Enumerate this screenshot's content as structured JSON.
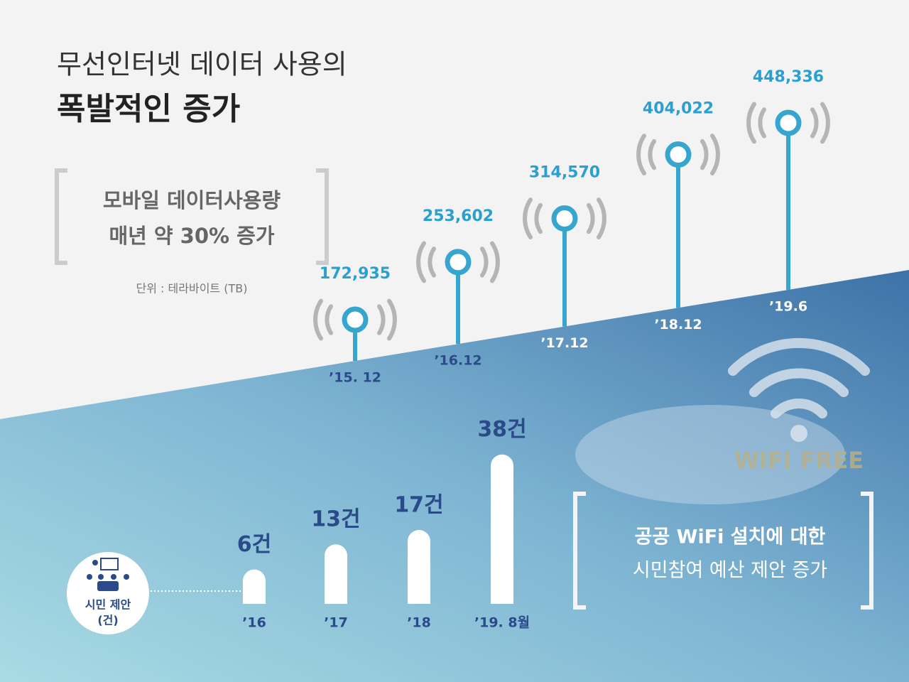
{
  "header": {
    "title_line1": "무선인터넷 데이터 사용의",
    "title_line2": "폭발적인 증가"
  },
  "callout": {
    "lines": [
      "모바일 데이터사용량",
      "매년 약 30% 증가"
    ]
  },
  "unit": "단위 : 테라바이트 (TB)",
  "citizen": {
    "label": "시민 제안",
    "sub": "(건)"
  },
  "wifi_box": {
    "lines": [
      "공공 WiFi 설치에 대한",
      "시민참여  예산 제안 증가"
    ]
  },
  "watermark": "WIFI FREE",
  "chart_data": [
    {
      "type": "lollipop",
      "color": "#37a6cf",
      "categories": [
        "’15. 12",
        "’16.12",
        "’17.12",
        "’18.12",
        "’19.6"
      ],
      "values": [
        172935,
        253602,
        314570,
        404022,
        448336
      ],
      "value_labels": [
        "172,935",
        "253,602",
        "314,570",
        "404,022",
        "448,336"
      ]
    },
    {
      "type": "bar",
      "color": "#ffffff",
      "categories": [
        "’16",
        "’17",
        "’18",
        "’19. 8월"
      ],
      "values": [
        6,
        13,
        17,
        38
      ],
      "value_labels": [
        "6건",
        "13건",
        "17건",
        "38건"
      ]
    }
  ]
}
